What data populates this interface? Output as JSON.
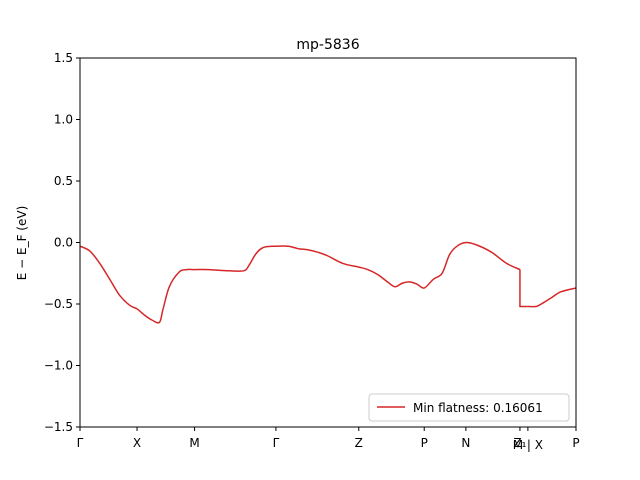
{
  "chart_data": {
    "type": "line",
    "title": "mp-5836",
    "xlabel": "",
    "ylabel": "E − E_F (eV)",
    "ylim": [
      -1.5,
      1.5
    ],
    "xlim": [
      0,
      1
    ],
    "grid": false,
    "legend_placement": "bottom-right",
    "y_ticks": [
      {
        "value": -1.5,
        "label": "−1.5"
      },
      {
        "value": -1.0,
        "label": "−1.0"
      },
      {
        "value": -0.5,
        "label": "−0.5"
      },
      {
        "value": 0.0,
        "label": "0.0"
      },
      {
        "value": 0.5,
        "label": "0.5"
      },
      {
        "value": 1.0,
        "label": "1.0"
      },
      {
        "value": 1.5,
        "label": "1.5"
      }
    ],
    "x_ticks": [
      {
        "value": 0.0,
        "label": "Γ"
      },
      {
        "value": 0.115,
        "label": "X"
      },
      {
        "value": 0.231,
        "label": "M"
      },
      {
        "value": 0.395,
        "label": "Γ"
      },
      {
        "value": 0.562,
        "label": "Z"
      },
      {
        "value": 0.694,
        "label": "P"
      },
      {
        "value": 0.778,
        "label": "N"
      },
      {
        "value": 0.887,
        "label": "Z₁"
      },
      {
        "value": 0.903,
        "label": "M | X"
      },
      {
        "value": 1.0,
        "label": "P"
      }
    ],
    "series": [
      {
        "name": "Min flatness: 0.16061",
        "color": "#d62728",
        "segments": [
          {
            "x": [
              0.0,
              0.02,
              0.04,
              0.06,
              0.08,
              0.1,
              0.115,
              0.13,
              0.145,
              0.16,
              0.167,
              0.18,
              0.2,
              0.215,
              0.231,
              0.26,
              0.3,
              0.33,
              0.34,
              0.355,
              0.37,
              0.395,
              0.42,
              0.44,
              0.46,
              0.48,
              0.5,
              0.53,
              0.562,
              0.58,
              0.6,
              0.62,
              0.635,
              0.65,
              0.665,
              0.68,
              0.694,
              0.712,
              0.73,
              0.745,
              0.76,
              0.778,
              0.8,
              0.83,
              0.86,
              0.887
            ],
            "y": [
              -0.03,
              -0.07,
              -0.17,
              -0.3,
              -0.43,
              -0.51,
              -0.54,
              -0.59,
              -0.63,
              -0.65,
              -0.55,
              -0.36,
              -0.24,
              -0.22,
              -0.22,
              -0.22,
              -0.23,
              -0.23,
              -0.19,
              -0.09,
              -0.04,
              -0.03,
              -0.03,
              -0.05,
              -0.06,
              -0.08,
              -0.11,
              -0.17,
              -0.2,
              -0.22,
              -0.26,
              -0.32,
              -0.36,
              -0.33,
              -0.32,
              -0.34,
              -0.37,
              -0.3,
              -0.25,
              -0.1,
              -0.03,
              0.0,
              -0.02,
              -0.08,
              -0.17,
              -0.22
            ]
          },
          {
            "x": [
              0.903,
              0.92,
              0.93,
              0.95,
              0.97,
              1.0
            ],
            "y": [
              -0.52,
              -0.52,
              -0.5,
              -0.45,
              -0.4,
              -0.37
            ]
          }
        ],
        "jump": {
          "x": 0.887,
          "from": -0.22,
          "to": -0.52
        }
      }
    ]
  }
}
